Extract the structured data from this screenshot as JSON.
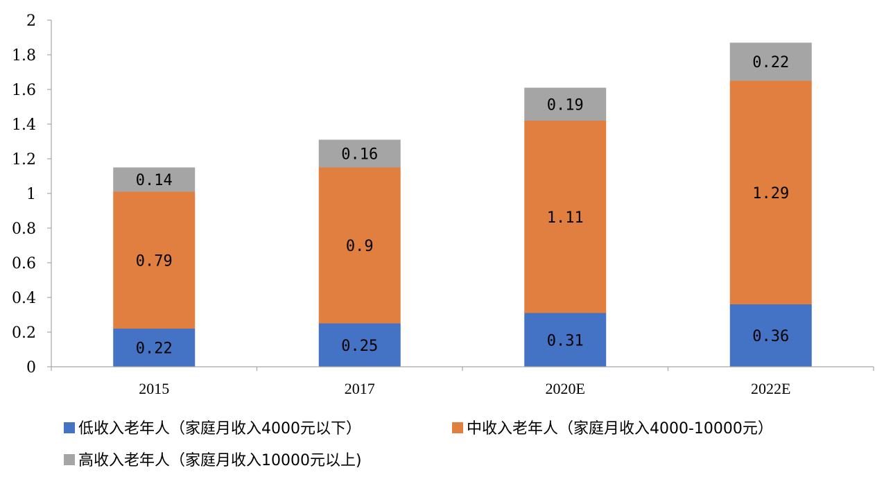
{
  "chart_data": {
    "type": "bar",
    "stacked": true,
    "title": "",
    "xlabel": "",
    "ylabel": "",
    "categories": [
      "2015",
      "2017",
      "2020E",
      "2022E"
    ],
    "ylim": [
      0,
      2
    ],
    "yticks": [
      "0",
      "0.2",
      "0.4",
      "0.6",
      "0.8",
      "1",
      "1.2",
      "1.4",
      "1.6",
      "1.8",
      "2"
    ],
    "grid": false,
    "legend_position": "bottom",
    "series": [
      {
        "name": "低收入老年人（家庭月收入4000元以下）",
        "color": "#4472c4",
        "values": [
          0.22,
          0.25,
          0.31,
          0.36
        ],
        "labels": [
          "0.22",
          "0.25",
          "0.31",
          "0.36"
        ]
      },
      {
        "name": "中收入老年人（家庭月收入4000-10000元）",
        "color": "#e07f3f",
        "values": [
          0.79,
          0.9,
          1.11,
          1.29
        ],
        "labels": [
          "0.79",
          "0.9",
          "1.11",
          "1.29"
        ]
      },
      {
        "name": "高收入老年人（家庭月收入10000元以上)",
        "color": "#a5a5a5",
        "values": [
          0.14,
          0.16,
          0.19,
          0.22
        ],
        "labels": [
          "0.14",
          "0.16",
          "0.19",
          "0.22"
        ]
      }
    ]
  }
}
